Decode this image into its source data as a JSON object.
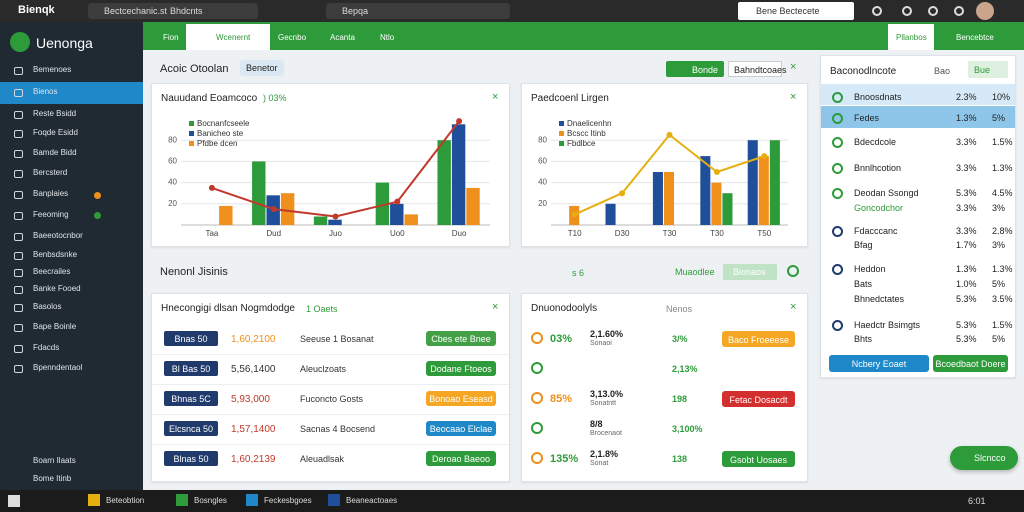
{
  "browser": {
    "app": "Bienqk",
    "tab": "Bectcechanic.st",
    "tab2": "Bhdcnts",
    "search": "Bepqa",
    "account": "Bene Bectecete"
  },
  "sidebar": {
    "brand": "Uenonga",
    "items": [
      "Bemenoes",
      "Bienos",
      "Reste Bsidd",
      "Foqde Esidd",
      "Bamde Bidd",
      "Bercsterd",
      "Banplaies",
      "Feeoming",
      "Baeeotocnbor",
      "Benbsdsnke",
      "Beecrailes",
      "Banke Fooed",
      "Basolos",
      "Bape Boinle",
      "Fdacds",
      "Bpenndentaol"
    ],
    "footer": [
      "Boarn Ilaats",
      "Bome Itinb"
    ]
  },
  "nav": {
    "tabs": [
      "Fion",
      "Wcenernt",
      "Gecnbo",
      "Acanta",
      "Ntlo"
    ],
    "right": [
      "Pllanbos",
      "Bencebtce"
    ]
  },
  "header": {
    "title": "Acoic Otoolan",
    "chip": "Benetor",
    "button": "Bonde",
    "link": "Bahndtcoaes"
  },
  "charts": [
    {
      "type": "bar",
      "title": "Nauudand Eoamcoco",
      "tag": ") 03%",
      "categories": [
        "Taa",
        "Dud",
        "Juo",
        "Uo0",
        "Duo"
      ],
      "series": [
        {
          "name": "Bocnanfcseele",
          "color": "#2e9b3a",
          "values": [
            null,
            60,
            8,
            40,
            80
          ]
        },
        {
          "name": "Banicheo ste",
          "color": "#1f4f9a",
          "values": [
            null,
            28,
            5,
            20,
            95
          ]
        },
        {
          "name": "Pfdbe dcen",
          "color": "#f0901c",
          "values": [
            18,
            30,
            null,
            10,
            35
          ]
        }
      ],
      "line": {
        "color": "#c0392b",
        "values": [
          35,
          15,
          8,
          22,
          98
        ]
      },
      "ylim": [
        0,
        100
      ],
      "yticks": [
        20,
        40,
        60,
        80
      ],
      "grid": true
    },
    {
      "type": "bar",
      "title": "Paedcoenl Lirgen",
      "tag": "",
      "categories": [
        "T10",
        "D30",
        "T30",
        "T30",
        "T50"
      ],
      "series": [
        {
          "name": "Dnaelicenhn",
          "color": "#1f4f9a",
          "values": [
            null,
            20,
            50,
            65,
            80
          ]
        },
        {
          "name": "Bcscc Itinb",
          "color": "#f0901c",
          "values": [
            18,
            null,
            50,
            40,
            65
          ]
        },
        {
          "name": "Fbdlbce",
          "color": "#2e9b3a",
          "values": [
            null,
            null,
            null,
            30,
            80
          ]
        }
      ],
      "line": {
        "color": "#e5b00f",
        "values": [
          10,
          30,
          85,
          50,
          65
        ]
      },
      "ylim": [
        0,
        100
      ],
      "yticks": [
        20,
        40,
        60,
        80
      ],
      "grid": true
    }
  ],
  "section": {
    "title": "Nenonl Jisinis",
    "pager": "s 6",
    "button1": "Muaodlee",
    "button2": "Bionaos"
  },
  "table_left": {
    "title": "Hnecongigi dlsan Nogmdodge",
    "tag": "1 Oaets",
    "rows": [
      {
        "badge": "Bnas 50",
        "amount": "1,60,2100",
        "name": "Seeuse 1 Bosanat",
        "button": "Cbes ete Bnee",
        "color": "#43a047"
      },
      {
        "badge": "Bl Bas 50",
        "amount": "5,56,1400",
        "name": "Aleuclzoats",
        "button": "Dodane Ftoeos",
        "color": "#2e9b3a"
      },
      {
        "badge": "Bhnas 5C",
        "amount": "5,93,000",
        "name": "Fuconcto Gosts",
        "button": "Bonoao Eseasd",
        "color": "#f5a623"
      },
      {
        "badge": "Elcsnca 50",
        "amount": "1,57,1400",
        "name": "Sacnas 4 Bocsend",
        "button": "Beocaao Elclae",
        "color": "#1e88c8"
      },
      {
        "badge": "Blnas 50",
        "amount": "1,60,2139",
        "name": "Aleuadlsak",
        "button": "Deroao Baeoo",
        "color": "#2e9b3a"
      }
    ]
  },
  "table_right": {
    "title": "Dnuonodoolyls",
    "tag": "Nenos",
    "rows": [
      {
        "pct": "03%",
        "val": "2,1.60%",
        "sub": "Sonaoi",
        "green": "3/%",
        "button": "Baco Froeeese",
        "color": "#f5a623"
      },
      {
        "pct": "",
        "val": "",
        "sub": "",
        "green": "2,13%"
      },
      {
        "pct": "85%",
        "val": "3,13.0%",
        "sub": "Sonatntt",
        "green": "198",
        "button": "Fetac Dosacdt",
        "color": "#d32f2f"
      },
      {
        "pct": "",
        "val": "8/8",
        "sub": "Brocenaot",
        "green": "3,100%"
      },
      {
        "pct": "135%",
        "val": "2,1.8%",
        "sub": "Sonat",
        "green": "138",
        "button": "Gsobt Uosaes",
        "color": "#2e9b3a"
      }
    ]
  },
  "panel": {
    "title": "Baconodlncote",
    "chip": "Bao",
    "button": "Bue",
    "rows": [
      {
        "name": "Bnoosdnats",
        "a": "2.3%",
        "b": "10%"
      },
      {
        "name": "Fedes",
        "a": "1.3%",
        "b": "5%"
      },
      {
        "name": "Bdecdcole",
        "a": "3.3%",
        "b": "1.5%"
      },
      {
        "name": "Bnnlhcotion",
        "a": "3.3%",
        "b": "1.3%"
      },
      {
        "name": "Deodan Ssongd",
        "a": "5.3%",
        "b": "4.5%"
      },
      {
        "name": "Goncodchor",
        "a": "3.3%",
        "b": "3%"
      },
      {
        "name": "Fdacccanc",
        "a": "3.3%",
        "b": "2.8%"
      },
      {
        "name": "Bfag",
        "a": "1.7%",
        "b": "3%"
      },
      {
        "name": "Heddon",
        "a": "1.3%",
        "b": "1.3%"
      },
      {
        "name": "Bats",
        "a": "1.0%",
        "b": "5%"
      },
      {
        "name": "Bhnedctates",
        "a": "5.3%",
        "b": "3.5%"
      },
      {
        "name": "Haedctr Bsimgts",
        "a": "5.3%",
        "b": "1.5%"
      },
      {
        "name": "Bhts",
        "a": "5.3%",
        "b": "5%"
      }
    ],
    "buttons": [
      "Ncbery Eoaet",
      "Bcoedbaot Doere"
    ]
  },
  "fab": "Slcncco",
  "taskbar": {
    "apps": [
      "Beteobtion",
      "Bosngles",
      "Feckesbgoes",
      "Beaneactoaes"
    ],
    "clock": "6:01"
  }
}
